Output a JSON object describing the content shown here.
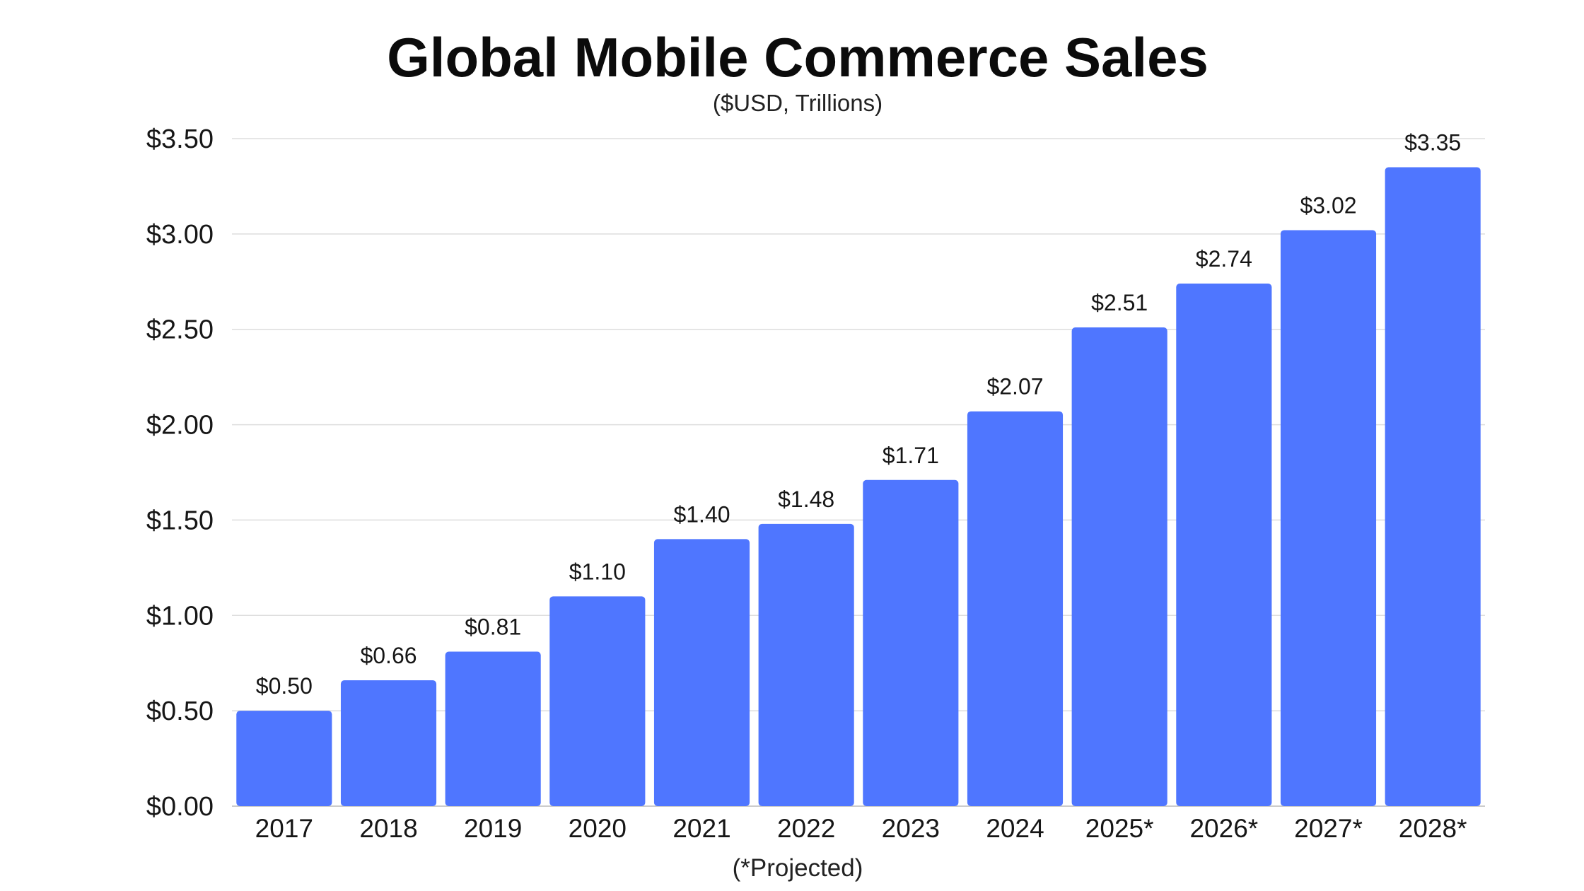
{
  "chart_data": {
    "type": "bar",
    "title": "Global Mobile Commerce Sales",
    "subtitle": "($USD, Trillions)",
    "xlabel": "(*Projected)",
    "ylabel": "",
    "categories": [
      "2017",
      "2018",
      "2019",
      "2020",
      "2021",
      "2022",
      "2023",
      "2024",
      "2025*",
      "2026*",
      "2027*",
      "2028*"
    ],
    "values": [
      0.5,
      0.66,
      0.81,
      1.1,
      1.4,
      1.48,
      1.71,
      2.07,
      2.51,
      2.74,
      3.02,
      3.35
    ],
    "data_labels": [
      "$0.50",
      "$0.66",
      "$0.81",
      "$1.10",
      "$1.40",
      "$1.48",
      "$1.71",
      "$2.07",
      "$2.51",
      "$2.74",
      "$3.02",
      "$3.35"
    ],
    "ylim": [
      0,
      3.5
    ],
    "yticks": [
      0,
      0.5,
      1.0,
      1.5,
      2.0,
      2.5,
      3.0,
      3.5
    ],
    "ytick_labels": [
      "$0.00",
      "$0.50",
      "$1.00",
      "$1.50",
      "$2.00",
      "$2.50",
      "$3.00",
      "$3.50"
    ],
    "grid": true,
    "legend": "none",
    "colors": {
      "bar": "#4f76ff",
      "grid": "#dddddd",
      "axis": "#cccccc",
      "title": "#0b0b0b",
      "text": "#161616"
    }
  }
}
